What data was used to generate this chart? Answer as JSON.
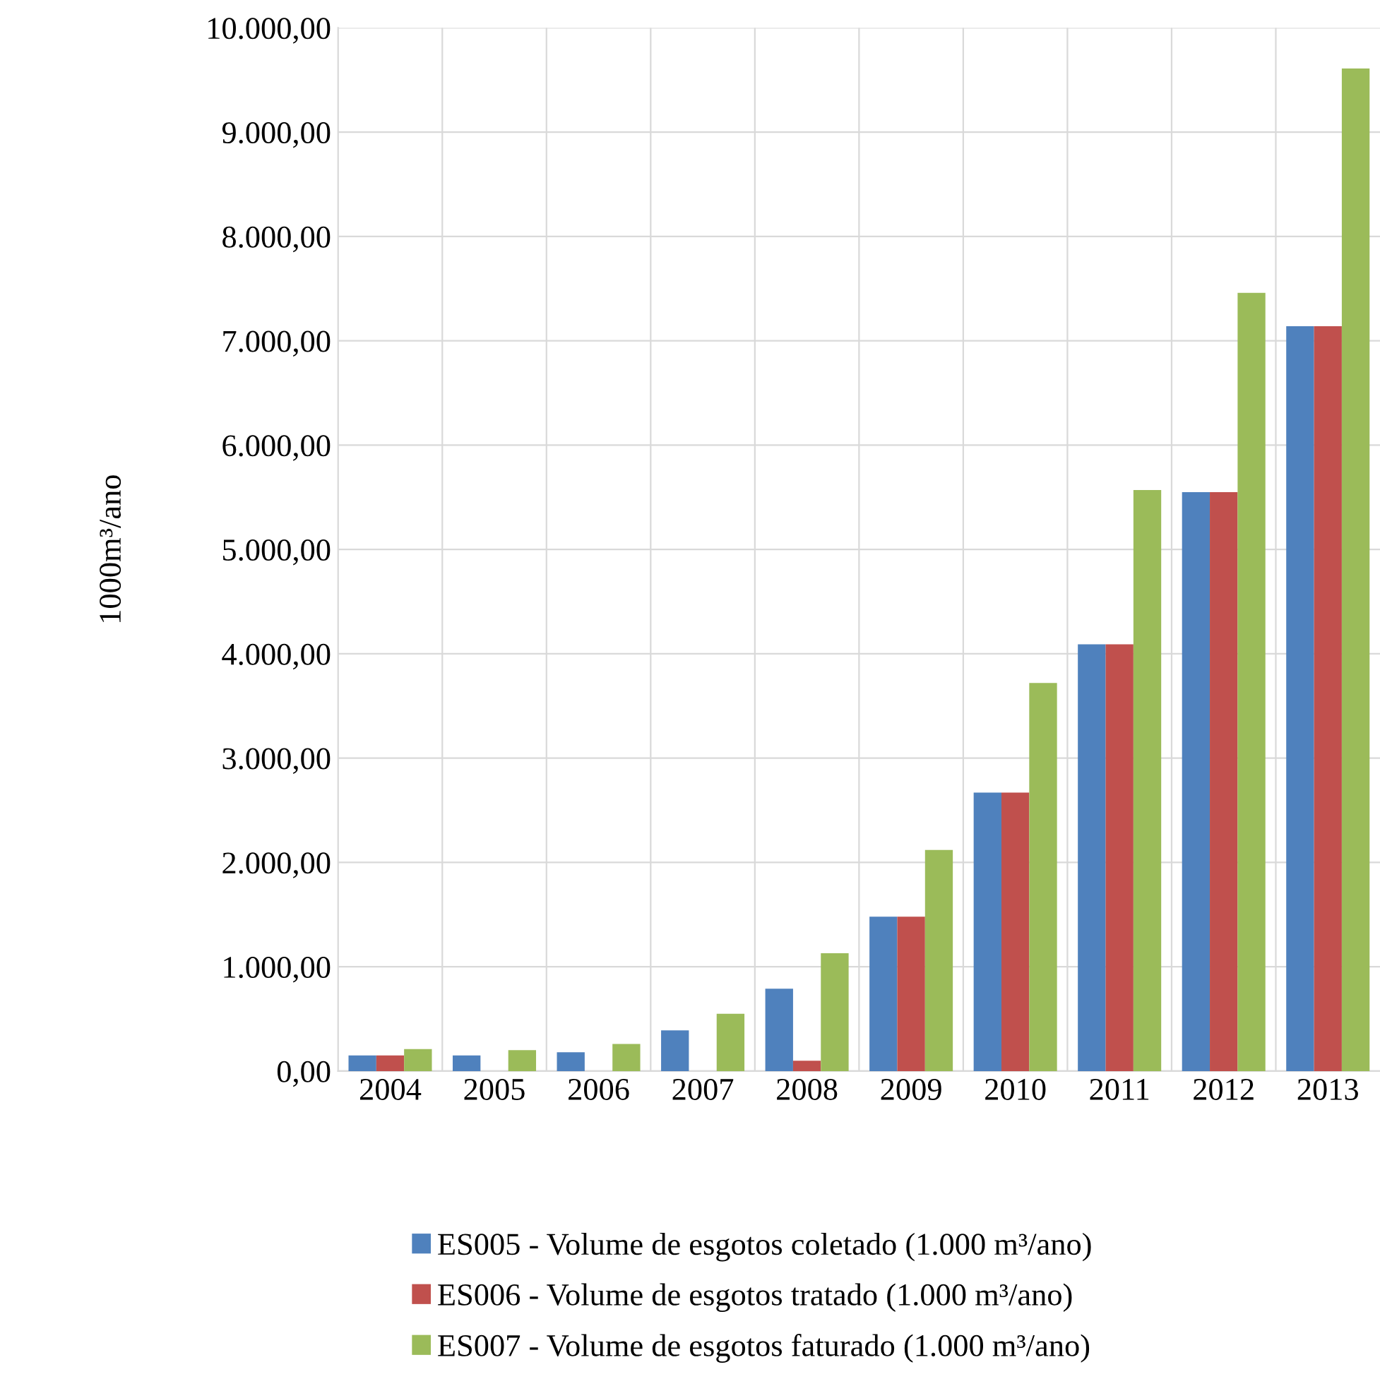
{
  "chart_data": {
    "type": "bar",
    "ylabel": "1000m³/ano",
    "categories": [
      "2004",
      "2005",
      "2006",
      "2007",
      "2008",
      "2009",
      "2010",
      "2011",
      "2012",
      "2013"
    ],
    "series": [
      {
        "name": "ES005 - Volume de esgotos coletado (1.000 m³/ano)",
        "color": "#4f81bd",
        "values": [
          150,
          150,
          180,
          390,
          790,
          1480,
          2670,
          4090,
          5550,
          7140
        ]
      },
      {
        "name": "ES006 - Volume de esgotos tratado (1.000 m³/ano)",
        "color": "#c0504d",
        "values": [
          150,
          0,
          0,
          0,
          100,
          1480,
          2670,
          4090,
          5550,
          7140
        ]
      },
      {
        "name": "ES007 - Volume de esgotos faturado (1.000 m³/ano)",
        "color": "#9bbb59",
        "values": [
          210,
          200,
          260,
          550,
          1130,
          2120,
          3720,
          5570,
          7460,
          9610
        ]
      }
    ],
    "ylim": [
      0,
      10000
    ],
    "yticks": [
      {
        "value": 0,
        "label": "0,00"
      },
      {
        "value": 1000,
        "label": "1.000,00"
      },
      {
        "value": 2000,
        "label": "2.000,00"
      },
      {
        "value": 3000,
        "label": "3.000,00"
      },
      {
        "value": 4000,
        "label": "4.000,00"
      },
      {
        "value": 5000,
        "label": "5.000,00"
      },
      {
        "value": 6000,
        "label": "6.000,00"
      },
      {
        "value": 7000,
        "label": "7.000,00"
      },
      {
        "value": 8000,
        "label": "8.000,00"
      },
      {
        "value": 9000,
        "label": "9.000,00"
      },
      {
        "value": 10000,
        "label": "10.000,00"
      }
    ],
    "grid": true,
    "legend": "bottom"
  }
}
